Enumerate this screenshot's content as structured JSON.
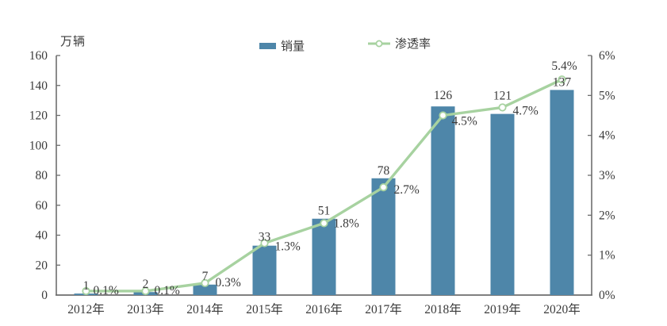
{
  "figure": {
    "unit_label": "万辆",
    "legend": {
      "sales_label": "销量",
      "penetration_label": "渗透率"
    }
  },
  "chart_data": {
    "type": "bar",
    "subtype": "combo-bar-line",
    "title": "",
    "categories": [
      "2012年",
      "2013年",
      "2014年",
      "2015年",
      "2016年",
      "2017年",
      "2018年",
      "2019年",
      "2020年"
    ],
    "series": [
      {
        "name": "销量",
        "type": "bar",
        "axis": "left",
        "unit": "万辆",
        "values": [
          1,
          2,
          7,
          33,
          51,
          78,
          126,
          121,
          137
        ],
        "labels": [
          "1",
          "2",
          "7",
          "33",
          "51",
          "78",
          "126",
          "121",
          "137"
        ],
        "color": "#4e86a9"
      },
      {
        "name": "渗透率",
        "type": "line",
        "axis": "right",
        "values": [
          0.1,
          0.1,
          0.3,
          1.3,
          1.8,
          2.7,
          4.5,
          4.7,
          5.4
        ],
        "labels": [
          "0.1%",
          "0.1%",
          "0.3%",
          "1.3%",
          "1.8%",
          "2.7%",
          "4.5%",
          "4.7%",
          "5.4%"
        ],
        "color": "#a7d2a0",
        "marker": "circle-open"
      }
    ],
    "left_axis": {
      "title": "万辆",
      "min": 0,
      "max": 160,
      "step": 20,
      "tick_labels": [
        "0",
        "20",
        "40",
        "60",
        "80",
        "100",
        "120",
        "140",
        "160"
      ]
    },
    "right_axis": {
      "min": 0,
      "max": 6,
      "step": 1,
      "tick_labels": [
        "0%",
        "1%",
        "2%",
        "3%",
        "4%",
        "5%",
        "6%"
      ]
    },
    "grid": false,
    "legend_position": "top-center",
    "background": "#ffffff",
    "text_color": "#3b3b3b",
    "axis_color": "#6e6e6e"
  }
}
